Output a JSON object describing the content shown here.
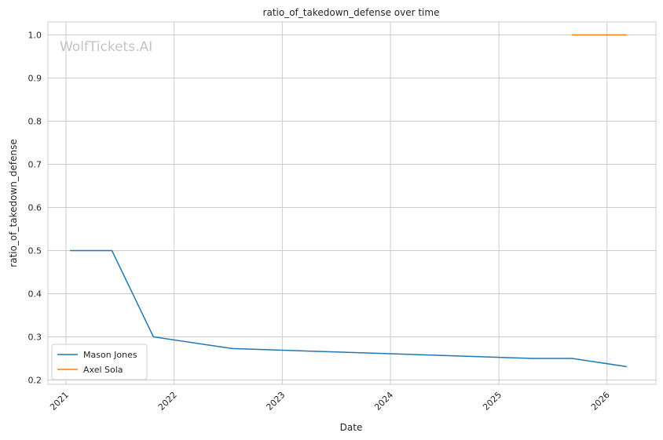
{
  "chart_data": {
    "type": "line",
    "title": "ratio_of_takedown_defense over time",
    "xlabel": "Date",
    "ylabel": "ratio_of_takedown_defense",
    "watermark": "WolfTickets.AI",
    "x_ticks": [
      "2021",
      "2022",
      "2023",
      "2024",
      "2025",
      "2026"
    ],
    "y_ticks": [
      "0.2",
      "0.3",
      "0.4",
      "0.5",
      "0.6",
      "0.7",
      "0.8",
      "0.9",
      "1.0"
    ],
    "xlim": [
      "2020-11-01",
      "2026-06-15"
    ],
    "ylim": [
      0.19,
      1.03
    ],
    "grid": true,
    "legend_position": "lower-left",
    "series": [
      {
        "name": "Mason Jones",
        "color": "#1f77b4",
        "points": [
          {
            "x": "2021-01-16",
            "y": 0.5
          },
          {
            "x": "2021-06-05",
            "y": 0.5
          },
          {
            "x": "2021-10-23",
            "y": 0.3
          },
          {
            "x": "2022-07-16",
            "y": 0.273
          },
          {
            "x": "2025-04-26",
            "y": 0.25
          },
          {
            "x": "2025-09-06",
            "y": 0.25
          },
          {
            "x": "2026-03-07",
            "y": 0.231
          }
        ]
      },
      {
        "name": "Axel Sola",
        "color": "#ff7f0e",
        "points": [
          {
            "x": "2025-09-06",
            "y": 1.0
          },
          {
            "x": "2026-03-07",
            "y": 1.0
          }
        ]
      }
    ]
  }
}
